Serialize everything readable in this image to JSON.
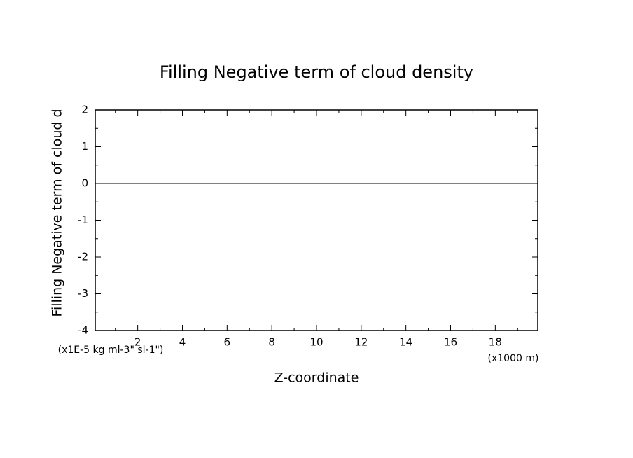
{
  "chart_data": {
    "type": "line",
    "title": "Filling Negative term of cloud density",
    "ylabel": "Filling Negative term of cloud d",
    "yunit": "(x1E-5 kg ml-3\" sl-1\")",
    "xlabel": "Z-coordinate",
    "xunit": "(x1000 m)",
    "x": [
      0.1,
      19.9
    ],
    "series": [
      {
        "color": "#000000",
        "values": [
          0,
          0
        ]
      }
    ],
    "xlim": [
      0.1,
      19.9
    ],
    "ylim": [
      -4,
      2
    ],
    "xticks": [
      2,
      4,
      6,
      8,
      10,
      12,
      14,
      16,
      18
    ],
    "yticks": [
      -4,
      -3,
      -2,
      -1,
      0,
      1,
      2
    ],
    "xminorticks": [
      1,
      3,
      5,
      7,
      9,
      11,
      13,
      15,
      17,
      19
    ],
    "yminorticks": [
      -3.5,
      -2.5,
      -1.5,
      -0.5,
      0.5,
      1.5
    ]
  }
}
